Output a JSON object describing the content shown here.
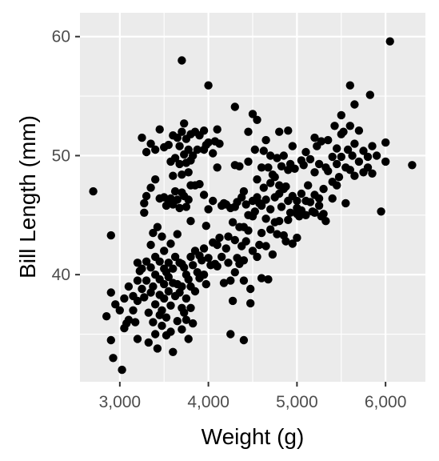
{
  "chart_data": {
    "type": "scatter",
    "xlabel": "Weight (g)",
    "ylabel": "Bill Length (mm)",
    "xlim": [
      2550,
      6450
    ],
    "ylim": [
      31,
      62
    ],
    "x_ticks": [
      {
        "value": 3000,
        "label": "3,000"
      },
      {
        "value": 4000,
        "label": "4,000"
      },
      {
        "value": 5000,
        "label": "5,000"
      },
      {
        "value": 6000,
        "label": "6,000"
      }
    ],
    "y_ticks": [
      {
        "value": 40,
        "label": "40"
      },
      {
        "value": 50,
        "label": "50"
      },
      {
        "value": 60,
        "label": "60"
      }
    ],
    "grid": true,
    "panel_color": "#ebebeb",
    "grid_color": "#ffffff",
    "point_color": "#000000",
    "points": [
      [
        2700,
        47.0
      ],
      [
        2850,
        36.5
      ],
      [
        2900,
        43.3
      ],
      [
        2900,
        38.5
      ],
      [
        2900,
        34.5
      ],
      [
        2925,
        33.0
      ],
      [
        2950,
        37.5
      ],
      [
        3000,
        37.0
      ],
      [
        3025,
        32.0
      ],
      [
        3050,
        35.5
      ],
      [
        3050,
        38.0
      ],
      [
        3075,
        35.9
      ],
      [
        3100,
        36.2
      ],
      [
        3100,
        39.0
      ],
      [
        3150,
        37.0
      ],
      [
        3150,
        38.2
      ],
      [
        3175,
        36.0
      ],
      [
        3200,
        41.0
      ],
      [
        3200,
        39.5
      ],
      [
        3200,
        37.8
      ],
      [
        3200,
        34.6
      ],
      [
        3225,
        40.3
      ],
      [
        3250,
        51.5
      ],
      [
        3250,
        40.5
      ],
      [
        3250,
        38.8
      ],
      [
        3275,
        46.0
      ],
      [
        3275,
        45.2
      ],
      [
        3275,
        38.1
      ],
      [
        3300,
        50.3
      ],
      [
        3300,
        46.6
      ],
      [
        3300,
        41.1
      ],
      [
        3300,
        39.5
      ],
      [
        3325,
        36.8
      ],
      [
        3325,
        34.3
      ],
      [
        3350,
        51.0
      ],
      [
        3350,
        47.3
      ],
      [
        3350,
        42.5
      ],
      [
        3350,
        40.6
      ],
      [
        3350,
        38.5
      ],
      [
        3375,
        43.5
      ],
      [
        3375,
        39.0
      ],
      [
        3375,
        36.0
      ],
      [
        3400,
        50.5
      ],
      [
        3400,
        48.0
      ],
      [
        3400,
        41.5
      ],
      [
        3400,
        40.0
      ],
      [
        3400,
        37.5
      ],
      [
        3400,
        35.0
      ],
      [
        3425,
        44.0
      ],
      [
        3425,
        33.8
      ],
      [
        3450,
        52.2
      ],
      [
        3450,
        46.4
      ],
      [
        3450,
        41.1
      ],
      [
        3450,
        39.6
      ],
      [
        3450,
        38.3
      ],
      [
        3450,
        36.6
      ],
      [
        3475,
        43.2
      ],
      [
        3475,
        37.0
      ],
      [
        3475,
        35.7
      ],
      [
        3500,
        50.7
      ],
      [
        3500,
        46.5
      ],
      [
        3500,
        42.0
      ],
      [
        3500,
        40.5
      ],
      [
        3500,
        39.2
      ],
      [
        3500,
        38.0
      ],
      [
        3525,
        45.8
      ],
      [
        3525,
        40.2
      ],
      [
        3525,
        36.4
      ],
      [
        3525,
        34.9
      ],
      [
        3550,
        50.9
      ],
      [
        3550,
        46.1
      ],
      [
        3550,
        41.0
      ],
      [
        3550,
        39.8
      ],
      [
        3550,
        38.6
      ],
      [
        3575,
        49.5
      ],
      [
        3575,
        46.4
      ],
      [
        3575,
        42.6
      ],
      [
        3575,
        37.4
      ],
      [
        3575,
        35.2
      ],
      [
        3600,
        51.7
      ],
      [
        3600,
        48.3
      ],
      [
        3600,
        45.9
      ],
      [
        3600,
        40.5
      ],
      [
        3600,
        39.3
      ],
      [
        3600,
        33.5
      ],
      [
        3625,
        49.8
      ],
      [
        3625,
        47.0
      ],
      [
        3625,
        41.5
      ],
      [
        3625,
        38.2
      ],
      [
        3650,
        51.5
      ],
      [
        3650,
        46.3
      ],
      [
        3650,
        43.4
      ],
      [
        3650,
        39.2
      ],
      [
        3650,
        36.1
      ],
      [
        3675,
        50.8
      ],
      [
        3675,
        49.3
      ],
      [
        3675,
        45.6
      ],
      [
        3675,
        41.0
      ],
      [
        3675,
        38.5
      ],
      [
        3700,
        58.0
      ],
      [
        3700,
        52.0
      ],
      [
        3700,
        48.4
      ],
      [
        3700,
        46.9
      ],
      [
        3700,
        40.9
      ],
      [
        3700,
        39.0
      ],
      [
        3700,
        37.2
      ],
      [
        3700,
        35.4
      ],
      [
        3725,
        52.7
      ],
      [
        3725,
        50.1
      ],
      [
        3725,
        46.6
      ],
      [
        3725,
        40.6
      ],
      [
        3725,
        36.8
      ],
      [
        3750,
        51.4
      ],
      [
        3750,
        49.4
      ],
      [
        3750,
        45.7
      ],
      [
        3750,
        40.0
      ],
      [
        3750,
        38.0
      ],
      [
        3750,
        36.2
      ],
      [
        3775,
        50.5
      ],
      [
        3775,
        48.6
      ],
      [
        3775,
        46.3
      ],
      [
        3775,
        39.6
      ],
      [
        3775,
        34.6
      ],
      [
        3800,
        51.8
      ],
      [
        3800,
        49.6
      ],
      [
        3800,
        47.5
      ],
      [
        3800,
        44.5
      ],
      [
        3800,
        41.5
      ],
      [
        3800,
        39.0
      ],
      [
        3800,
        37.2
      ],
      [
        3825,
        50.0
      ],
      [
        3825,
        40.8
      ],
      [
        3825,
        35.9
      ],
      [
        3850,
        52.0
      ],
      [
        3850,
        47.5
      ],
      [
        3850,
        42.0
      ],
      [
        3850,
        38.6
      ],
      [
        3875,
        50.5
      ],
      [
        3875,
        40.2
      ],
      [
        3900,
        51.7
      ],
      [
        3900,
        47.6
      ],
      [
        3900,
        41.6
      ],
      [
        3900,
        39.7
      ],
      [
        3925,
        41.2
      ],
      [
        3950,
        52.1
      ],
      [
        3950,
        50.5
      ],
      [
        3950,
        46.7
      ],
      [
        3950,
        42.2
      ],
      [
        3950,
        40.0
      ],
      [
        3975,
        50.9
      ],
      [
        3975,
        44.1
      ],
      [
        3975,
        39.2
      ],
      [
        4000,
        55.9
      ],
      [
        4000,
        51.1
      ],
      [
        4000,
        45.5
      ],
      [
        4000,
        41.4
      ],
      [
        4025,
        40.8
      ],
      [
        4050,
        50.2
      ],
      [
        4050,
        46.2
      ],
      [
        4050,
        42.7
      ],
      [
        4075,
        51.2
      ],
      [
        4075,
        40.9
      ],
      [
        4100,
        52.2
      ],
      [
        4100,
        49.0
      ],
      [
        4100,
        42.5
      ],
      [
        4100,
        40.7
      ],
      [
        4125,
        51.0
      ],
      [
        4125,
        43.1
      ],
      [
        4150,
        41.5
      ],
      [
        4150,
        45.8
      ],
      [
        4175,
        46.0
      ],
      [
        4175,
        39.3
      ],
      [
        4200,
        45.9
      ],
      [
        4200,
        42.2
      ],
      [
        4225,
        43.2
      ],
      [
        4225,
        41.0
      ],
      [
        4250,
        45.6
      ],
      [
        4250,
        39.5
      ],
      [
        4250,
        35.0
      ],
      [
        4275,
        37.8
      ],
      [
        4275,
        44.4
      ],
      [
        4300,
        54.1
      ],
      [
        4300,
        49.2
      ],
      [
        4300,
        45.7
      ],
      [
        4300,
        42.9
      ],
      [
        4300,
        40.2
      ],
      [
        4325,
        46.1
      ],
      [
        4325,
        41.4
      ],
      [
        4350,
        49.1
      ],
      [
        4350,
        44.0
      ],
      [
        4350,
        40.9
      ],
      [
        4375,
        46.5
      ],
      [
        4375,
        42.4
      ],
      [
        4400,
        47.0
      ],
      [
        4400,
        44.0
      ],
      [
        4400,
        41.2
      ],
      [
        4400,
        39.5
      ],
      [
        4400,
        34.5
      ],
      [
        4425,
        45.9
      ],
      [
        4425,
        42.8
      ],
      [
        4450,
        52.0
      ],
      [
        4450,
        49.5
      ],
      [
        4450,
        45.0
      ],
      [
        4450,
        43.7
      ],
      [
        4475,
        38.8
      ],
      [
        4475,
        37.6
      ],
      [
        4500,
        53.5
      ],
      [
        4500,
        46.2
      ],
      [
        4500,
        44.9
      ],
      [
        4500,
        42.0
      ],
      [
        4525,
        50.5
      ],
      [
        4525,
        45.3
      ],
      [
        4550,
        53.0
      ],
      [
        4550,
        48.0
      ],
      [
        4550,
        46.5
      ],
      [
        4550,
        41.5
      ],
      [
        4575,
        46.0
      ],
      [
        4575,
        42.5
      ],
      [
        4600,
        49.0
      ],
      [
        4600,
        45.8
      ],
      [
        4600,
        43.5
      ],
      [
        4600,
        39.7
      ],
      [
        4625,
        50.4
      ],
      [
        4625,
        47.3
      ],
      [
        4650,
        51.3
      ],
      [
        4650,
        46.3
      ],
      [
        4650,
        44.7
      ],
      [
        4650,
        42.4
      ],
      [
        4675,
        49.0
      ],
      [
        4675,
        39.6
      ],
      [
        4700,
        50.0
      ],
      [
        4700,
        47.7
      ],
      [
        4700,
        45.5
      ],
      [
        4700,
        43.8
      ],
      [
        4725,
        48.4
      ],
      [
        4725,
        41.7
      ],
      [
        4750,
        48.2
      ],
      [
        4750,
        46.5
      ],
      [
        4750,
        44.4
      ],
      [
        4775,
        49.8
      ],
      [
        4775,
        43.4
      ],
      [
        4800,
        52.0
      ],
      [
        4800,
        47.5
      ],
      [
        4800,
        46.8
      ],
      [
        4800,
        44.5
      ],
      [
        4825,
        49.1
      ],
      [
        4825,
        45.7
      ],
      [
        4850,
        50.0
      ],
      [
        4850,
        47.2
      ],
      [
        4850,
        43.3
      ],
      [
        4875,
        47.4
      ],
      [
        4875,
        42.8
      ],
      [
        4900,
        52.1
      ],
      [
        4900,
        48.8
      ],
      [
        4900,
        46.2
      ],
      [
        4900,
        44.6
      ],
      [
        4925,
        49.3
      ],
      [
        4925,
        45.2
      ],
      [
        4950,
        50.8
      ],
      [
        4950,
        46.6
      ],
      [
        4950,
        42.6
      ],
      [
        4975,
        48.9
      ],
      [
        5000,
        46.2
      ],
      [
        5000,
        45.6
      ],
      [
        5000,
        43.1
      ],
      [
        5000,
        45.1
      ],
      [
        5025,
        44.9
      ],
      [
        5050,
        49.6
      ],
      [
        5050,
        46.8
      ],
      [
        5050,
        45.4
      ],
      [
        5075,
        49.2
      ],
      [
        5100,
        50.3
      ],
      [
        5100,
        46.2
      ],
      [
        5100,
        45.0
      ],
      [
        5125,
        47.5
      ],
      [
        5150,
        49.7
      ],
      [
        5150,
        46.1
      ],
      [
        5175,
        45.3
      ],
      [
        5200,
        51.5
      ],
      [
        5200,
        48.6
      ],
      [
        5200,
        46.7
      ],
      [
        5200,
        45.2
      ],
      [
        5225,
        50.8
      ],
      [
        5250,
        49.3
      ],
      [
        5250,
        46.4
      ],
      [
        5250,
        45.8
      ],
      [
        5275,
        51.2
      ],
      [
        5275,
        44.9
      ],
      [
        5300,
        47.2
      ],
      [
        5300,
        45.1
      ],
      [
        5325,
        49.0
      ],
      [
        5325,
        44.5
      ],
      [
        5350,
        51.3
      ],
      [
        5350,
        48.7
      ],
      [
        5400,
        49.9
      ],
      [
        5400,
        47.8
      ],
      [
        5400,
        46.4
      ],
      [
        5425,
        52.5
      ],
      [
        5450,
        50.6
      ],
      [
        5450,
        49.3
      ],
      [
        5450,
        47.5
      ],
      [
        5475,
        48.2
      ],
      [
        5500,
        53.4
      ],
      [
        5500,
        51.8
      ],
      [
        5500,
        49.9
      ],
      [
        5525,
        52.0
      ],
      [
        5550,
        49.0
      ],
      [
        5550,
        46.0
      ],
      [
        5575,
        50.5
      ],
      [
        5600,
        55.9
      ],
      [
        5600,
        52.5
      ],
      [
        5600,
        48.8
      ],
      [
        5625,
        50.0
      ],
      [
        5650,
        54.3
      ],
      [
        5650,
        51.0
      ],
      [
        5650,
        48.3
      ],
      [
        5700,
        52.1
      ],
      [
        5700,
        49.5
      ],
      [
        5750,
        50.4
      ],
      [
        5750,
        48.6
      ],
      [
        5800,
        49.9
      ],
      [
        5800,
        49.0
      ],
      [
        5825,
        55.1
      ],
      [
        5850,
        50.8
      ],
      [
        5850,
        48.5
      ],
      [
        5900,
        50.0
      ],
      [
        5950,
        45.3
      ],
      [
        6000,
        51.1
      ],
      [
        6000,
        49.5
      ],
      [
        6050,
        59.6
      ],
      [
        6300,
        49.2
      ]
    ]
  }
}
